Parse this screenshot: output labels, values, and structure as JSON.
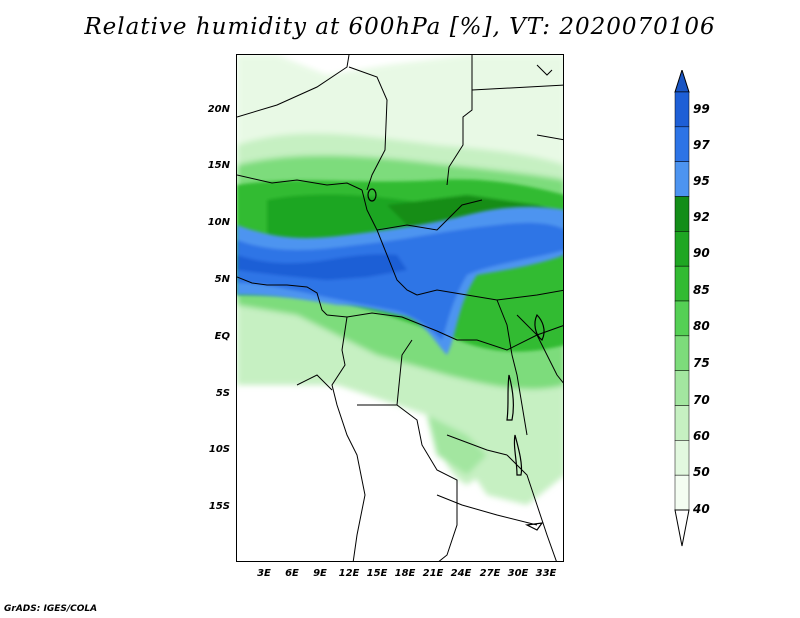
{
  "title": "Relative humidity at 600hPa [%], VT: 2020070106",
  "footer": "GrADS: IGES/COLA",
  "map": {
    "region": "Central Africa",
    "lat_ticks": [
      {
        "value": 20,
        "label": "20N"
      },
      {
        "value": 15,
        "label": "15N"
      },
      {
        "value": 10,
        "label": "10N"
      },
      {
        "value": 5,
        "label": "5N"
      },
      {
        "value": 0,
        "label": "EQ"
      },
      {
        "value": -5,
        "label": "5S"
      },
      {
        "value": -10,
        "label": "10S"
      },
      {
        "value": -15,
        "label": "15S"
      }
    ],
    "lon_ticks": [
      {
        "value": 3,
        "label": "3E"
      },
      {
        "value": 6,
        "label": "6E"
      },
      {
        "value": 9,
        "label": "9E"
      },
      {
        "value": 12,
        "label": "12E"
      },
      {
        "value": 15,
        "label": "15E"
      },
      {
        "value": 18,
        "label": "18E"
      },
      {
        "value": 21,
        "label": "21E"
      },
      {
        "value": 24,
        "label": "24E"
      },
      {
        "value": 27,
        "label": "27E"
      },
      {
        "value": 30,
        "label": "30E"
      },
      {
        "value": 33,
        "label": "33E"
      }
    ]
  },
  "colorbar": {
    "levels": [
      {
        "label": "99",
        "color": "#1e5fd6"
      },
      {
        "label": "97",
        "color": "#2d74e6"
      },
      {
        "label": "95",
        "color": "#4d94f0"
      },
      {
        "label": "92",
        "color": "#138d18"
      },
      {
        "label": "90",
        "color": "#1fa623"
      },
      {
        "label": "85",
        "color": "#33bb33"
      },
      {
        "label": "80",
        "color": "#55d055"
      },
      {
        "label": "75",
        "color": "#7ddc7b"
      },
      {
        "label": "70",
        "color": "#a3e6a0"
      },
      {
        "label": "60",
        "color": "#c6f0c2"
      },
      {
        "label": "50",
        "color": "#e2f8df"
      },
      {
        "label": "40",
        "color": "#f4fdf2"
      }
    ],
    "top_arrow_color": "#1a56c4",
    "bottom_arrow_color": "#ffffff"
  }
}
